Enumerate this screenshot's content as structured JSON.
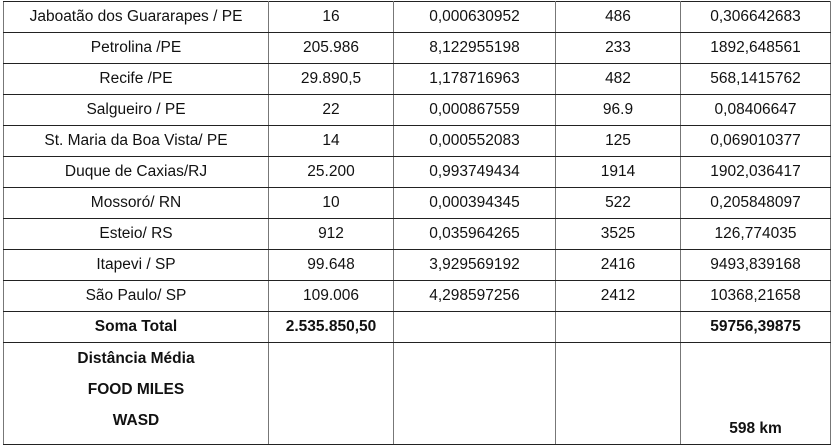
{
  "rows": [
    [
      "Jaboatão dos Guararapes / PE",
      "16",
      "0,000630952",
      "486",
      "0,306642683"
    ],
    [
      "Petrolina /PE",
      "205.986",
      "8,122955198",
      "233",
      "1892,648561"
    ],
    [
      "Recife /PE",
      "29.890,5",
      "1,178716963",
      "482",
      "568,1415762"
    ],
    [
      "Salgueiro / PE",
      "22",
      "0,000867559",
      "96.9",
      "0,08406647"
    ],
    [
      "St. Maria da Boa Vista/ PE",
      "14",
      "0,000552083",
      "125",
      "0,069010377"
    ],
    [
      "Duque de Caxias/RJ",
      "25.200",
      "0,993749434",
      "1914",
      "1902,036417"
    ],
    [
      "Mossoró/ RN",
      "10",
      "0,000394345",
      "522",
      "0,205848097"
    ],
    [
      "Esteio/ RS",
      "912",
      "0,035964265",
      "3525",
      "126,774035"
    ],
    [
      "Itapevi / SP",
      "99.648",
      "3,929569192",
      "2416",
      "9493,839168"
    ],
    [
      "São Paulo/ SP",
      "109.006",
      "4,298597256",
      "2412",
      "10368,21658"
    ]
  ],
  "total": {
    "label": "Soma Total",
    "quantity": "2.535.850,50",
    "col3": "",
    "col4": "",
    "weighted": "59756,39875"
  },
  "average": {
    "label_lines": [
      "Distância Média",
      "FOOD MILES",
      "WASD"
    ],
    "value": "598 km"
  }
}
